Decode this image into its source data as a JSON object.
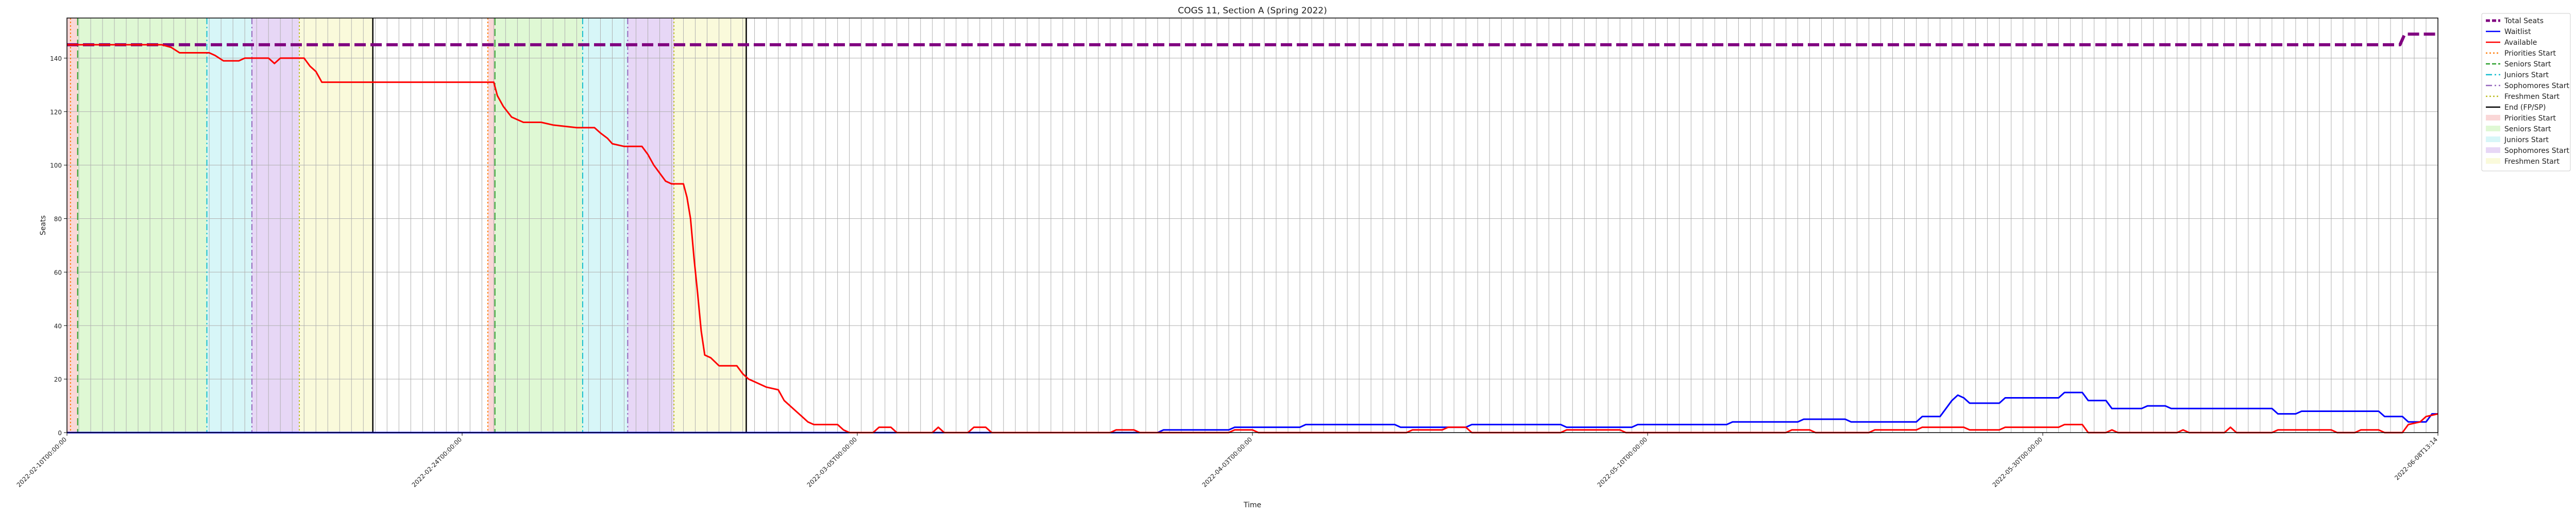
{
  "chart_data": {
    "type": "line",
    "title": "COGS 11, Section A (Spring 2022)",
    "xlabel": "Time",
    "ylabel": "Seats",
    "ylim": [
      0,
      155
    ],
    "yticks": [
      0,
      20,
      40,
      60,
      80,
      100,
      120,
      140
    ],
    "grid": true,
    "legend_position": "outside-right",
    "x_tick_count": 200,
    "x_tick_labels_shown": [
      "2022-02-10T00:00:00",
      "2022-02-24T00:00:00",
      "2022-03-05T00:00:00",
      "2022-04-03T00:00:00",
      "2022-05-10T00:00:00",
      "2022-05-30T00:00:00",
      "2022-06-08T13:14"
    ],
    "x_range": [
      0,
      200
    ],
    "series": [
      {
        "name": "Total Seats",
        "color": "#800080",
        "style": "dashed",
        "points": [
          [
            0,
            145
          ],
          [
            196.8,
            145
          ],
          [
            197.2,
            149
          ],
          [
            200,
            149
          ]
        ]
      },
      {
        "name": "Waitlist",
        "color": "#0000ff",
        "style": "solid",
        "points": [
          [
            0,
            0
          ],
          [
            92,
            0
          ],
          [
            92.5,
            1
          ],
          [
            98,
            1
          ],
          [
            98.5,
            2
          ],
          [
            104,
            2
          ],
          [
            104.5,
            3
          ],
          [
            112,
            3
          ],
          [
            112.5,
            2
          ],
          [
            118,
            2
          ],
          [
            118.5,
            3
          ],
          [
            126,
            3
          ],
          [
            126.5,
            2
          ],
          [
            132,
            2
          ],
          [
            132.5,
            3
          ],
          [
            140,
            3
          ],
          [
            140.5,
            4
          ],
          [
            146,
            4
          ],
          [
            146.5,
            5
          ],
          [
            150,
            5
          ],
          [
            150.5,
            4
          ],
          [
            156,
            4
          ],
          [
            156.5,
            6
          ],
          [
            158,
            6
          ],
          [
            158.5,
            9
          ],
          [
            159,
            12
          ],
          [
            159.5,
            14
          ],
          [
            160,
            13
          ],
          [
            160.5,
            11
          ],
          [
            163,
            11
          ],
          [
            163.5,
            13
          ],
          [
            168,
            13
          ],
          [
            168.5,
            15
          ],
          [
            170,
            15
          ],
          [
            170.5,
            12
          ],
          [
            172,
            12
          ],
          [
            172.5,
            9
          ],
          [
            175,
            9
          ],
          [
            175.5,
            10
          ],
          [
            177,
            10
          ],
          [
            177.5,
            9
          ],
          [
            186,
            9
          ],
          [
            186.5,
            7
          ],
          [
            188,
            7
          ],
          [
            188.5,
            8
          ],
          [
            195,
            8
          ],
          [
            195.5,
            6
          ],
          [
            197,
            6
          ],
          [
            197.5,
            4
          ],
          [
            199,
            4
          ],
          [
            199.5,
            7
          ],
          [
            200,
            7
          ]
        ]
      },
      {
        "name": "Available",
        "color": "#ff0000",
        "style": "solid",
        "points": [
          [
            0,
            145
          ],
          [
            8,
            145
          ],
          [
            8.8,
            144
          ],
          [
            9.5,
            142
          ],
          [
            12,
            142
          ],
          [
            12.5,
            141
          ],
          [
            13.2,
            139
          ],
          [
            14.5,
            139
          ],
          [
            15,
            140
          ],
          [
            17,
            140
          ],
          [
            17.5,
            138
          ],
          [
            18,
            140
          ],
          [
            20,
            140
          ],
          [
            20.5,
            137
          ],
          [
            21,
            135
          ],
          [
            21.5,
            131
          ],
          [
            36,
            131
          ],
          [
            36.3,
            126
          ],
          [
            36.8,
            122
          ],
          [
            37.5,
            118
          ],
          [
            38.5,
            116
          ],
          [
            40,
            116
          ],
          [
            41,
            115
          ],
          [
            43,
            114
          ],
          [
            44.5,
            114
          ],
          [
            45,
            112
          ],
          [
            45.6,
            110
          ],
          [
            46,
            108
          ],
          [
            47,
            107
          ],
          [
            48.5,
            107
          ],
          [
            49,
            104
          ],
          [
            49.5,
            100
          ],
          [
            50,
            97
          ],
          [
            50.5,
            94
          ],
          [
            51,
            93
          ],
          [
            52,
            93
          ],
          [
            52.3,
            88
          ],
          [
            52.6,
            80
          ],
          [
            52.9,
            65
          ],
          [
            53.2,
            52
          ],
          [
            53.5,
            38
          ],
          [
            53.8,
            29
          ],
          [
            54.3,
            28
          ],
          [
            55,
            25
          ],
          [
            56.5,
            25
          ],
          [
            57,
            22
          ],
          [
            57.5,
            20
          ],
          [
            58,
            19
          ],
          [
            59,
            17
          ],
          [
            60,
            16
          ],
          [
            60.5,
            12
          ],
          [
            61,
            10
          ],
          [
            61.5,
            8
          ],
          [
            62,
            6
          ],
          [
            62.5,
            4
          ],
          [
            63,
            3
          ],
          [
            65,
            3
          ],
          [
            65.5,
            1
          ],
          [
            66,
            0
          ],
          [
            68,
            0
          ],
          [
            68.5,
            2
          ],
          [
            69.5,
            2
          ],
          [
            70,
            0
          ],
          [
            73,
            0
          ],
          [
            73.5,
            2
          ],
          [
            74,
            0
          ],
          [
            76,
            0
          ],
          [
            76.5,
            2
          ],
          [
            77.5,
            2
          ],
          [
            78,
            0
          ],
          [
            88,
            0
          ],
          [
            88.5,
            1
          ],
          [
            90,
            1
          ],
          [
            90.5,
            0
          ],
          [
            98,
            0
          ],
          [
            98.5,
            1
          ],
          [
            100,
            1
          ],
          [
            100.5,
            0
          ],
          [
            113,
            0
          ],
          [
            113.5,
            1
          ],
          [
            116,
            1
          ],
          [
            116.5,
            2
          ],
          [
            118,
            2
          ],
          [
            118.5,
            0
          ],
          [
            126,
            0
          ],
          [
            126.5,
            1
          ],
          [
            131,
            1
          ],
          [
            131.5,
            0
          ],
          [
            145,
            0
          ],
          [
            145.5,
            1
          ],
          [
            147,
            1
          ],
          [
            147.5,
            0
          ],
          [
            152,
            0
          ],
          [
            152.5,
            1
          ],
          [
            156,
            1
          ],
          [
            156.5,
            2
          ],
          [
            160,
            2
          ],
          [
            160.5,
            1
          ],
          [
            163,
            1
          ],
          [
            163.5,
            2
          ],
          [
            168,
            2
          ],
          [
            168.5,
            3
          ],
          [
            170,
            3
          ],
          [
            170.5,
            0
          ],
          [
            172,
            0
          ],
          [
            172.5,
            1
          ],
          [
            173,
            0
          ],
          [
            178,
            0
          ],
          [
            178.5,
            1
          ],
          [
            179,
            0
          ],
          [
            182,
            0
          ],
          [
            182.5,
            2
          ],
          [
            183,
            0
          ],
          [
            186,
            0
          ],
          [
            186.5,
            1
          ],
          [
            191,
            1
          ],
          [
            191.5,
            0
          ],
          [
            193,
            0
          ],
          [
            193.5,
            1
          ],
          [
            195,
            1
          ],
          [
            195.5,
            0
          ],
          [
            197,
            0
          ],
          [
            197.5,
            3
          ],
          [
            198.5,
            4
          ],
          [
            199,
            6
          ],
          [
            200,
            7
          ]
        ]
      }
    ],
    "phases": [
      {
        "name": "Priorities Start",
        "color": "#f4a6a6",
        "start": 0,
        "end": 0.9
      },
      {
        "name": "Seniors Start",
        "color": "#b7f0a0",
        "start": 0.9,
        "end": 11.8
      },
      {
        "name": "Juniors Start",
        "color": "#a6ecf0",
        "start": 11.8,
        "end": 15.6
      },
      {
        "name": "Sophomores Start",
        "color": "#c9a6ec",
        "start": 15.6,
        "end": 19.6
      },
      {
        "name": "Freshmen Start",
        "color": "#f4f4b0",
        "start": 19.6,
        "end": 25.8
      },
      {
        "name": "Priorities Start",
        "color": "#f4a6a6",
        "start": 35.5,
        "end": 36.1
      },
      {
        "name": "Seniors Start",
        "color": "#b7f0a0",
        "start": 36.1,
        "end": 43.5
      },
      {
        "name": "Juniors Start",
        "color": "#a6ecf0",
        "start": 43.5,
        "end": 47.3
      },
      {
        "name": "Sophomores Start",
        "color": "#c9a6ec",
        "start": 47.3,
        "end": 51.2
      },
      {
        "name": "Freshmen Start",
        "color": "#f4f4b0",
        "start": 51.2,
        "end": 57.3
      }
    ],
    "vlines": [
      {
        "name": "Priorities Start",
        "color": "#ff7f0e",
        "style": "dotted",
        "x": 0.3
      },
      {
        "name": "Seniors Start",
        "color": "#2ca02c",
        "style": "dashed",
        "x": 0.9
      },
      {
        "name": "Juniors Start",
        "color": "#17becf",
        "style": "dashdot",
        "x": 11.8
      },
      {
        "name": "Sophomores Start",
        "color": "#9467bd",
        "style": "dashdot",
        "x": 15.6
      },
      {
        "name": "Freshmen Start",
        "color": "#bcbd22",
        "style": "dotted",
        "x": 19.6
      },
      {
        "name": "End (FP/SP)",
        "color": "#000000",
        "style": "solid",
        "x": 25.8
      },
      {
        "name": "Priorities Start",
        "color": "#ff7f0e",
        "style": "dotted",
        "x": 35.5
      },
      {
        "name": "Seniors Start",
        "color": "#2ca02c",
        "style": "dashed",
        "x": 36.1
      },
      {
        "name": "Juniors Start",
        "color": "#17becf",
        "style": "dashdot",
        "x": 43.5
      },
      {
        "name": "Sophomores Start",
        "color": "#9467bd",
        "style": "dashdot",
        "x": 47.3
      },
      {
        "name": "Freshmen Start",
        "color": "#bcbd22",
        "style": "dotted",
        "x": 51.2
      },
      {
        "name": "End (FP/SP)",
        "color": "#000000",
        "style": "solid",
        "x": 57.3
      }
    ],
    "legend": [
      {
        "label": "Total Seats",
        "kind": "line",
        "color": "#800080",
        "style": "dashed"
      },
      {
        "label": "Waitlist",
        "kind": "line",
        "color": "#0000ff",
        "style": "solid"
      },
      {
        "label": "Available",
        "kind": "line",
        "color": "#ff0000",
        "style": "solid"
      },
      {
        "label": "Priorities Start",
        "kind": "line",
        "color": "#ff7f0e",
        "style": "dotted"
      },
      {
        "label": "Seniors Start",
        "kind": "line",
        "color": "#2ca02c",
        "style": "dashed"
      },
      {
        "label": "Juniors Start",
        "kind": "line",
        "color": "#17becf",
        "style": "dashdot"
      },
      {
        "label": "Sophomores Start",
        "kind": "line",
        "color": "#9467bd",
        "style": "dashdot"
      },
      {
        "label": "Freshmen Start",
        "kind": "line",
        "color": "#bcbd22",
        "style": "dotted"
      },
      {
        "label": "End (FP/SP)",
        "kind": "line",
        "color": "#000000",
        "style": "solid"
      },
      {
        "label": "Priorities Start",
        "kind": "patch",
        "color": "#f4a6a6"
      },
      {
        "label": "Seniors Start",
        "kind": "patch",
        "color": "#b7f0a0"
      },
      {
        "label": "Juniors Start",
        "kind": "patch",
        "color": "#a6ecf0"
      },
      {
        "label": "Sophomores Start",
        "kind": "patch",
        "color": "#c9a6ec"
      },
      {
        "label": "Freshmen Start",
        "kind": "patch",
        "color": "#f4f4b0"
      }
    ]
  }
}
